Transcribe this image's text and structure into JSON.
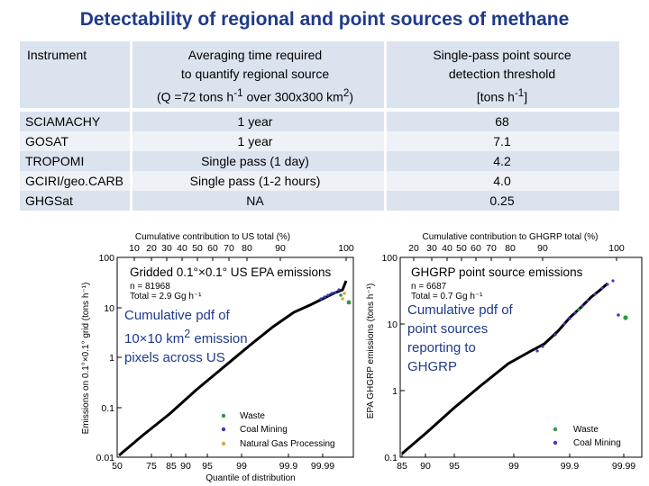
{
  "title": "Detectability of regional and point sources of methane",
  "table": {
    "headers": [
      "Instrument",
      "Averaging time required\nto quantify regional source\n(Q =72 tons h-1 over 300x300 km2)",
      "Single-pass point source\ndetection threshold\n[tons h-1]"
    ],
    "rows": [
      {
        "instrument": "SCIAMACHY",
        "averaging": "1 year",
        "threshold": "68"
      },
      {
        "instrument": "GOSAT",
        "averaging": "1 year",
        "threshold": "7.1"
      },
      {
        "instrument": "TROPOMI",
        "averaging": "Single pass (1 day)",
        "threshold": "4.2"
      },
      {
        "instrument": "GCIRI/geo.CARB",
        "averaging": "Single pass (1-2 hours)",
        "threshold": "4.0"
      },
      {
        "instrument": "GHGSat",
        "averaging": "NA",
        "threshold": "0.25"
      }
    ]
  },
  "chart_data": [
    {
      "type": "line",
      "title": "Gridded 0.1°×0.1° US EPA emissions",
      "stats": [
        "n = 81968",
        "Total = 2.9 Gg h⁻¹"
      ],
      "top_axis_label": "Cumulative contribution to US total (%)",
      "top_ticks": [
        "10",
        "20",
        "30",
        "40",
        "50",
        "60",
        "70",
        "80",
        "90",
        "100"
      ],
      "xlabel": "Quantile of distribution",
      "x_ticks": [
        "50",
        "75",
        "85",
        "90",
        "95",
        "99",
        "99.9",
        "99.99"
      ],
      "ylabel": "Emissions on 0.1°×0.1° grid (tons h⁻¹)",
      "y_ticks": [
        "100",
        "10",
        "1",
        "0.1",
        "0.01"
      ],
      "yscale": "log",
      "ylim": [
        0.01,
        100
      ],
      "legend": [
        "Waste",
        "Coal Mining",
        "Natural Gas Processing"
      ],
      "legend_colors": [
        "#2e9a3e",
        "#3b3bc4",
        "#e8a33a"
      ],
      "annotation": "Cumulative pdf of 10×10 km2 emission pixels across US"
    },
    {
      "type": "line",
      "title": "GHGRP point source emissions",
      "stats": [
        "n = 6687",
        "Total = 0.7 Gg h⁻¹"
      ],
      "top_axis_label": "Cumulative contribution to GHGRP total (%)",
      "top_ticks": [
        "20",
        "30",
        "40",
        "50",
        "60",
        "70",
        "80",
        "90",
        "100"
      ],
      "xlabel": "",
      "x_ticks": [
        "85",
        "90",
        "95",
        "99",
        "99.9",
        "99.99"
      ],
      "ylabel": "EPA GHGRP emissions (tons h⁻¹)",
      "y_ticks": [
        "100",
        "10",
        "1",
        "0.1"
      ],
      "yscale": "log",
      "ylim": [
        0.1,
        100
      ],
      "legend": [
        "Waste",
        "Coal Mining"
      ],
      "legend_colors": [
        "#2e9a3e",
        "#3b3bc4"
      ],
      "annotation": "Cumulative pdf of point sources reporting to GHGRP"
    }
  ]
}
